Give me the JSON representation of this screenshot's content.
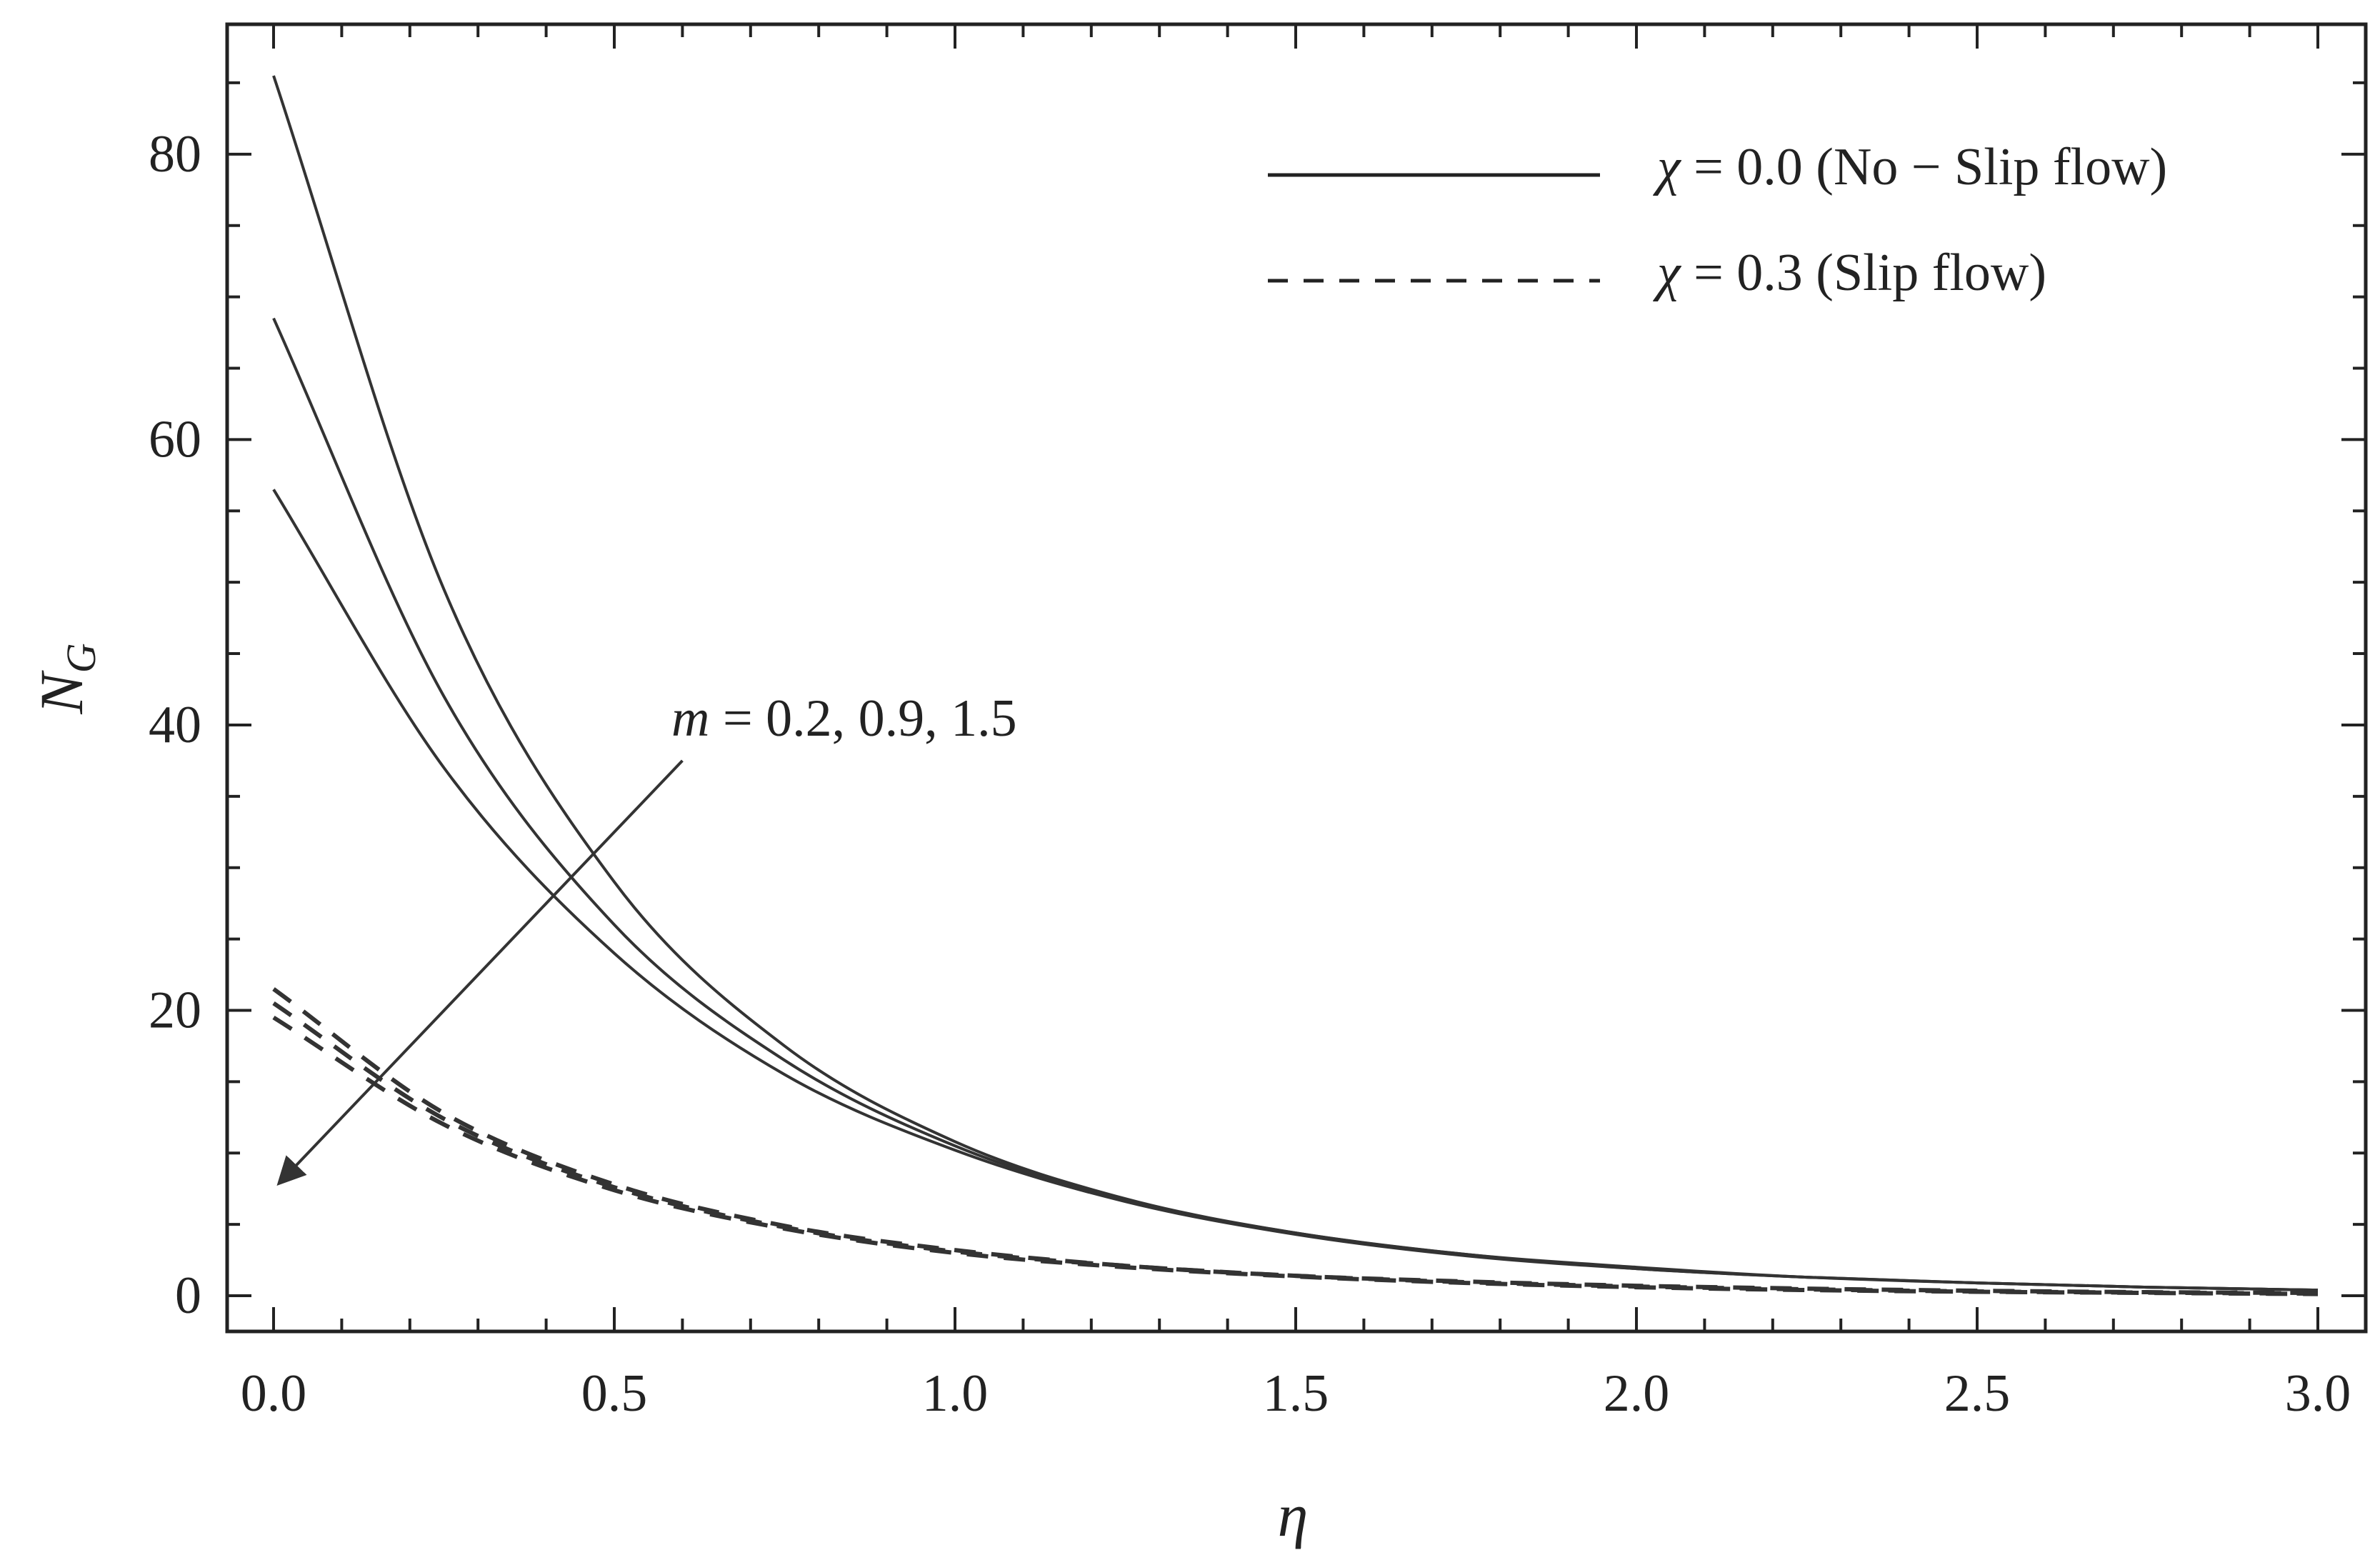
{
  "chart_data": {
    "type": "line",
    "xlabel": "η",
    "ylabel_main": "N",
    "ylabel_sub": "G",
    "xlim": [
      0,
      3.0
    ],
    "ylim": [
      -2.5,
      88
    ],
    "xticks": [
      "0.0",
      "0.5",
      "1.0",
      "1.5",
      "2.0",
      "2.5",
      "3.0"
    ],
    "xtick_values": [
      0,
      0.5,
      1.0,
      1.5,
      2.0,
      2.5,
      3.0
    ],
    "yticks": [
      "0",
      "20",
      "40",
      "60",
      "80"
    ],
    "ytick_values": [
      0,
      20,
      40,
      60,
      80
    ],
    "grid": false,
    "legend_position": "top-right",
    "legend": [
      {
        "symbol": "χ",
        "text": " = 0.0 (No − Slip flow)",
        "style": "solid"
      },
      {
        "symbol": "χ",
        "text": " = 0.3 (Slip flow)",
        "style": "dashed"
      }
    ],
    "annotation": {
      "symbol": "m",
      "text": " = 0.2, 0.9, 1.5"
    },
    "x": [
      0,
      0.25,
      0.5,
      0.75,
      1.0,
      1.25,
      1.5,
      1.75,
      2.0,
      2.25,
      2.5,
      2.75,
      3.0
    ],
    "series": [
      {
        "style": "solid",
        "values": [
          85.5,
          49.5,
          29.0,
          17.5,
          10.8,
          6.8,
          4.4,
          2.9,
          2.0,
          1.3,
          0.9,
          0.6,
          0.4
        ]
      },
      {
        "style": "solid",
        "values": [
          68.5,
          42.0,
          26.0,
          16.5,
          10.5,
          6.7,
          4.4,
          2.9,
          1.9,
          1.3,
          0.9,
          0.6,
          0.4
        ]
      },
      {
        "style": "solid",
        "values": [
          56.5,
          37.0,
          24.0,
          15.5,
          10.2,
          6.6,
          4.3,
          2.8,
          1.9,
          1.3,
          0.9,
          0.6,
          0.4
        ]
      },
      {
        "style": "dashed",
        "values": [
          21.5,
          12.8,
          7.8,
          4.9,
          3.2,
          2.1,
          1.4,
          1.0,
          0.7,
          0.5,
          0.35,
          0.25,
          0.2
        ]
      },
      {
        "style": "dashed",
        "values": [
          20.5,
          12.4,
          7.6,
          4.8,
          3.1,
          2.1,
          1.4,
          0.95,
          0.65,
          0.45,
          0.3,
          0.22,
          0.15
        ]
      },
      {
        "style": "dashed",
        "values": [
          19.5,
          12.0,
          7.4,
          4.7,
          3.0,
          2.0,
          1.35,
          0.9,
          0.6,
          0.4,
          0.28,
          0.2,
          0.12
        ]
      }
    ],
    "arrow": {
      "from": [
        0.6,
        37.5
      ],
      "to": [
        0.0,
        7.5
      ]
    }
  }
}
